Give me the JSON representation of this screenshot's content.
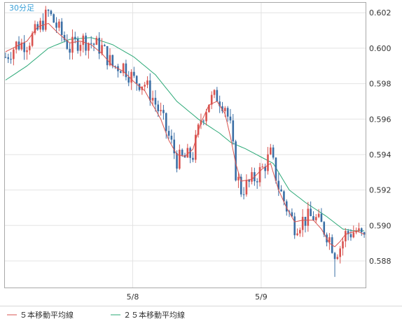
{
  "chart_data": {
    "type": "candlestick",
    "title": "30分足",
    "x_ticks": [
      "5/8",
      "5/9"
    ],
    "y_ticks": [
      "0.602",
      "0.600",
      "0.598",
      "0.596",
      "0.594",
      "0.592",
      "0.590",
      "0.588"
    ],
    "ylim": [
      0.5865,
      0.6026
    ],
    "grid": true,
    "legend_position": "bottom-left",
    "series": [
      {
        "name": "５本移動平均線",
        "type": "line",
        "color": "#d9534f"
      },
      {
        "name": "２５本移動平均線",
        "type": "line",
        "color": "#2aa876"
      }
    ],
    "candles": {
      "up_color": "#d9534f",
      "down_color": "#3a6ea5",
      "waypoints": [
        [
          0,
          0.5995
        ],
        [
          4,
          0.6002
        ],
        [
          8,
          0.6003
        ],
        [
          12,
          0.601
        ],
        [
          16,
          0.602
        ],
        [
          20,
          0.601
        ],
        [
          24,
          0.6
        ],
        [
          28,
          0.6005
        ],
        [
          32,
          0.6003
        ],
        [
          36,
          0.6
        ],
        [
          40,
          0.599
        ],
        [
          44,
          0.599
        ],
        [
          48,
          0.5982
        ],
        [
          52,
          0.598
        ],
        [
          55,
          0.5972
        ],
        [
          58,
          0.5962
        ],
        [
          61,
          0.595
        ],
        [
          64,
          0.5937
        ],
        [
          67,
          0.5938
        ],
        [
          70,
          0.594
        ],
        [
          73,
          0.596
        ],
        [
          76,
          0.597
        ],
        [
          79,
          0.5973
        ],
        [
          82,
          0.5968
        ],
        [
          84,
          0.5955
        ],
        [
          86,
          0.593
        ],
        [
          88,
          0.592
        ],
        [
          92,
          0.5925
        ],
        [
          96,
          0.5932
        ],
        [
          99,
          0.594
        ],
        [
          102,
          0.5922
        ],
        [
          105,
          0.591
        ],
        [
          108,
          0.59
        ],
        [
          111,
          0.5903
        ],
        [
          115,
          0.5905
        ],
        [
          118,
          0.59
        ],
        [
          121,
          0.5893
        ],
        [
          123,
          0.5885
        ],
        [
          125,
          0.5888
        ],
        [
          127,
          0.5895
        ],
        [
          131,
          0.5897
        ],
        [
          134,
          0.5892
        ]
      ],
      "count": 135,
      "min_low": 0.5871,
      "max_high": 0.6022
    },
    "ma5_waypoints": [
      [
        0,
        0.5998
      ],
      [
        4,
        0.6001
      ],
      [
        8,
        0.6004
      ],
      [
        12,
        0.6012
      ],
      [
        16,
        0.6014
      ],
      [
        20,
        0.6008
      ],
      [
        24,
        0.6003
      ],
      [
        28,
        0.6004
      ],
      [
        32,
        0.6002
      ],
      [
        36,
        0.5997
      ],
      [
        40,
        0.599
      ],
      [
        44,
        0.5987
      ],
      [
        48,
        0.5981
      ],
      [
        52,
        0.5976
      ],
      [
        55,
        0.5968
      ],
      [
        58,
        0.596
      ],
      [
        61,
        0.5948
      ],
      [
        64,
        0.594
      ],
      [
        67,
        0.5939
      ],
      [
        70,
        0.5943
      ],
      [
        73,
        0.5958
      ],
      [
        76,
        0.5968
      ],
      [
        79,
        0.597
      ],
      [
        82,
        0.5963
      ],
      [
        84,
        0.595
      ],
      [
        86,
        0.5935
      ],
      [
        88,
        0.5925
      ],
      [
        92,
        0.5926
      ],
      [
        96,
        0.5932
      ],
      [
        99,
        0.5935
      ],
      [
        102,
        0.592
      ],
      [
        105,
        0.591
      ],
      [
        108,
        0.5902
      ],
      [
        111,
        0.5903
      ],
      [
        115,
        0.5903
      ],
      [
        118,
        0.5898
      ],
      [
        121,
        0.589
      ],
      [
        123,
        0.5888
      ],
      [
        125,
        0.5891
      ],
      [
        127,
        0.5895
      ],
      [
        131,
        0.5897
      ],
      [
        134,
        0.5895
      ]
    ],
    "ma25_waypoints": [
      [
        0,
        0.5982
      ],
      [
        8,
        0.599
      ],
      [
        16,
        0.6
      ],
      [
        24,
        0.6005
      ],
      [
        32,
        0.6006
      ],
      [
        40,
        0.6002
      ],
      [
        48,
        0.5995
      ],
      [
        56,
        0.5985
      ],
      [
        64,
        0.597
      ],
      [
        72,
        0.596
      ],
      [
        80,
        0.5952
      ],
      [
        84,
        0.5947
      ],
      [
        90,
        0.5943
      ],
      [
        100,
        0.5935
      ],
      [
        106,
        0.592
      ],
      [
        112,
        0.5913
      ],
      [
        120,
        0.5905
      ],
      [
        126,
        0.5898
      ],
      [
        130,
        0.5897
      ],
      [
        134,
        0.5897
      ]
    ]
  }
}
